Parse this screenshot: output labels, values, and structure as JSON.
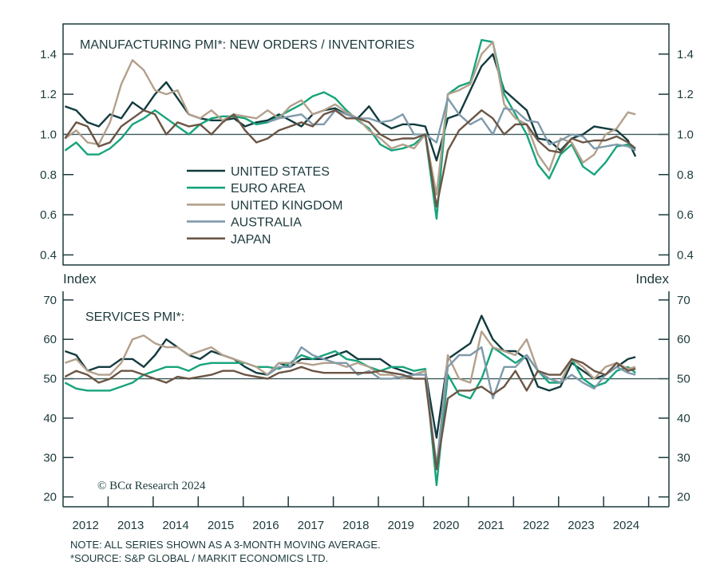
{
  "chart_data": [
    {
      "type": "line",
      "title": "MANUFACTURING PMI*: NEW ORDERS / INVENTORIES",
      "ylabel_left": "Index",
      "ylabel_right": "Index",
      "ylim": [
        0.35,
        1.55
      ],
      "yticks": [
        "0.4",
        "0.6",
        "0.8",
        "1.0",
        "1.2",
        "1.4"
      ],
      "reference_line": 1.0,
      "legend_placement": "center-left",
      "x": [
        "2012-01",
        "2012-04",
        "2012-07",
        "2012-10",
        "2013-01",
        "2013-04",
        "2013-07",
        "2013-10",
        "2014-01",
        "2014-04",
        "2014-07",
        "2014-10",
        "2015-01",
        "2015-04",
        "2015-07",
        "2015-10",
        "2016-01",
        "2016-04",
        "2016-07",
        "2016-10",
        "2017-01",
        "2017-04",
        "2017-07",
        "2017-10",
        "2018-01",
        "2018-04",
        "2018-07",
        "2018-10",
        "2019-01",
        "2019-04",
        "2019-07",
        "2019-10",
        "2020-01",
        "2020-04",
        "2020-07",
        "2020-10",
        "2021-01",
        "2021-04",
        "2021-07",
        "2021-10",
        "2022-01",
        "2022-04",
        "2022-07",
        "2022-10",
        "2023-01",
        "2023-04",
        "2023-07",
        "2023-10",
        "2024-01",
        "2024-04",
        "2024-07",
        "2024-09"
      ],
      "series": [
        {
          "name": "UNITED STATES",
          "color": "#123b3f",
          "values": [
            1.14,
            1.12,
            1.06,
            1.04,
            1.1,
            1.08,
            1.16,
            1.12,
            1.2,
            1.26,
            1.18,
            1.1,
            1.08,
            1.07,
            1.07,
            1.08,
            1.04,
            1.06,
            1.07,
            1.1,
            1.07,
            1.04,
            1.1,
            1.12,
            1.13,
            1.1,
            1.08,
            1.14,
            1.06,
            1.03,
            1.05,
            1.05,
            1.04,
            0.87,
            1.08,
            1.1,
            1.22,
            1.34,
            1.4,
            1.22,
            1.17,
            1.12,
            0.98,
            0.97,
            0.92,
            0.98,
            1.0,
            1.04,
            1.03,
            1.02,
            0.97,
            0.89
          ]
        },
        {
          "name": "EURO AREA",
          "color": "#17a37b",
          "values": [
            0.92,
            0.96,
            0.9,
            0.9,
            0.93,
            0.98,
            1.05,
            1.08,
            1.12,
            1.08,
            1.04,
            1.0,
            1.05,
            1.08,
            1.09,
            1.09,
            1.08,
            1.05,
            1.06,
            1.09,
            1.12,
            1.15,
            1.19,
            1.21,
            1.18,
            1.12,
            1.07,
            1.03,
            0.95,
            0.92,
            0.93,
            0.95,
            1.0,
            0.58,
            1.2,
            1.24,
            1.26,
            1.47,
            1.46,
            1.2,
            1.1,
            1.0,
            0.85,
            0.78,
            0.9,
            0.95,
            0.84,
            0.8,
            0.86,
            0.94,
            0.95,
            0.92
          ]
        },
        {
          "name": "UNITED KINGDOM",
          "color": "#b3a08c",
          "values": [
            0.98,
            1.02,
            0.96,
            0.95,
            1.06,
            1.25,
            1.37,
            1.32,
            1.22,
            1.2,
            1.22,
            1.1,
            1.08,
            1.12,
            1.07,
            1.1,
            1.09,
            1.08,
            1.12,
            1.08,
            1.14,
            1.17,
            1.1,
            1.12,
            1.15,
            1.11,
            1.08,
            1.02,
            0.98,
            0.93,
            0.95,
            0.93,
            1.0,
            0.7,
            1.2,
            1.22,
            1.25,
            1.4,
            1.46,
            1.15,
            1.08,
            1.05,
            0.9,
            0.82,
            0.98,
            0.96,
            0.86,
            0.9,
            1.0,
            1.03,
            1.11,
            1.1
          ]
        },
        {
          "name": "AUSTRALIA",
          "color": "#7f9aab",
          "values": [
            null,
            null,
            null,
            null,
            null,
            null,
            null,
            null,
            null,
            null,
            null,
            null,
            null,
            null,
            null,
            null,
            null,
            null,
            1.06,
            1.08,
            1.09,
            1.1,
            1.05,
            1.05,
            1.12,
            1.1,
            1.08,
            1.08,
            1.06,
            1.07,
            1.1,
            1.0,
            1.0,
            0.96,
            1.18,
            1.1,
            1.05,
            1.08,
            1.0,
            1.13,
            1.12,
            1.07,
            1.06,
            0.95,
            0.97,
            1.0,
            0.99,
            0.93,
            0.94,
            0.95,
            0.94,
            0.92
          ]
        },
        {
          "name": "JAPAN",
          "color": "#6b5545",
          "values": [
            0.98,
            1.06,
            1.04,
            0.94,
            0.96,
            1.04,
            1.08,
            1.12,
            1.1,
            1.0,
            1.06,
            1.04,
            1.05,
            1.0,
            1.06,
            1.1,
            1.02,
            0.96,
            0.98,
            1.02,
            1.04,
            1.06,
            1.04,
            1.1,
            1.12,
            1.08,
            1.08,
            1.06,
            1.0,
            0.97,
            0.98,
            0.98,
            1.0,
            0.64,
            0.92,
            1.02,
            1.07,
            1.12,
            1.08,
            1.0,
            1.05,
            1.05,
            0.97,
            0.92,
            0.91,
            0.98,
            0.96,
            0.97,
            0.97,
            0.99,
            0.96,
            0.93
          ]
        }
      ]
    },
    {
      "type": "line",
      "title": "SERVICES PMI*:",
      "ylim": [
        17.5,
        72.2
      ],
      "yticks": [
        "20",
        "30",
        "40",
        "50",
        "60",
        "70"
      ],
      "reference_line": 50,
      "xticks": [
        "2012",
        "2013",
        "2014",
        "2015",
        "2016",
        "2017",
        "2018",
        "2019",
        "2020",
        "2021",
        "2022",
        "2023",
        "2024"
      ],
      "x": [
        "2012-01",
        "2012-04",
        "2012-07",
        "2012-10",
        "2013-01",
        "2013-04",
        "2013-07",
        "2013-10",
        "2014-01",
        "2014-04",
        "2014-07",
        "2014-10",
        "2015-01",
        "2015-04",
        "2015-07",
        "2015-10",
        "2016-01",
        "2016-04",
        "2016-07",
        "2016-10",
        "2017-01",
        "2017-04",
        "2017-07",
        "2017-10",
        "2018-01",
        "2018-04",
        "2018-07",
        "2018-10",
        "2019-01",
        "2019-04",
        "2019-07",
        "2019-10",
        "2020-01",
        "2020-04",
        "2020-07",
        "2020-10",
        "2021-01",
        "2021-04",
        "2021-07",
        "2021-10",
        "2022-01",
        "2022-04",
        "2022-07",
        "2022-10",
        "2023-01",
        "2023-04",
        "2023-07",
        "2023-10",
        "2024-01",
        "2024-04",
        "2024-07",
        "2024-09"
      ],
      "series": [
        {
          "name": "UNITED STATES",
          "color": "#123b3f",
          "values": [
            57,
            56,
            52,
            53,
            53,
            55,
            55,
            53,
            56,
            60,
            58,
            56,
            55,
            57,
            56,
            55,
            53,
            51.5,
            51,
            54,
            53,
            55,
            55,
            55,
            56,
            57,
            55,
            55,
            55,
            53,
            52,
            51,
            52,
            35,
            55,
            57,
            59,
            66,
            60,
            57,
            57,
            55,
            48,
            47,
            48,
            54,
            52,
            50,
            51,
            53,
            55,
            55.5
          ]
        },
        {
          "name": "EURO AREA",
          "color": "#17a37b",
          "values": [
            49,
            47.5,
            47,
            47,
            47,
            48,
            49,
            51,
            52,
            53,
            53,
            52,
            53.5,
            54,
            54,
            54,
            54,
            53,
            53,
            52.5,
            54,
            56,
            55,
            56,
            57,
            55,
            54.5,
            53,
            52,
            53,
            53,
            52,
            52.5,
            23,
            51,
            46,
            45,
            50,
            58,
            56,
            54,
            56,
            52,
            49,
            49,
            55,
            50,
            48,
            49,
            52,
            53,
            51.5
          ]
        },
        {
          "name": "UNITED KINGDOM",
          "color": "#b3a08c",
          "values": [
            54,
            55,
            52,
            51,
            51,
            54,
            60,
            61,
            59,
            58,
            58,
            56,
            57,
            58,
            56,
            55,
            54,
            53,
            51,
            54,
            54,
            54,
            53.5,
            54,
            54,
            53,
            54,
            53,
            51,
            51,
            50,
            51,
            52,
            27,
            56,
            50,
            49,
            62,
            58,
            57,
            56,
            60,
            52,
            50,
            49,
            55,
            53,
            50,
            53,
            54,
            52.5,
            53
          ]
        },
        {
          "name": "AUSTRALIA",
          "color": "#7f9aab",
          "values": [
            null,
            null,
            null,
            null,
            null,
            null,
            null,
            null,
            null,
            null,
            null,
            null,
            null,
            null,
            null,
            null,
            null,
            null,
            51,
            53,
            53,
            58,
            56,
            55,
            54,
            54,
            51,
            52,
            50,
            50,
            50.5,
            51,
            51,
            28,
            53,
            56,
            56,
            58,
            45,
            53,
            53,
            56,
            52,
            50,
            49,
            51,
            49,
            47.5,
            51,
            53,
            51.5,
            51
          ]
        },
        {
          "name": "JAPAN",
          "color": "#6b5545",
          "values": [
            50.5,
            52,
            51,
            49,
            50,
            52,
            52,
            51,
            50,
            49,
            50.5,
            50,
            50.5,
            51,
            52,
            52,
            51,
            50.5,
            50,
            51.5,
            52,
            53,
            52,
            51.5,
            51.5,
            51.5,
            51.5,
            51.5,
            52,
            51.5,
            51,
            50,
            50,
            27,
            45,
            47,
            47,
            48,
            46,
            48,
            52,
            47,
            52,
            51,
            51,
            55,
            54,
            52,
            51,
            54,
            52,
            52.5
          ]
        }
      ]
    }
  ],
  "labels": {
    "index_left": "Index",
    "index_right": "Index",
    "copyright": "© BCα Research 2024",
    "note1": "NOTE: ALL SERIES SHOWN AS A 3-MONTH MOVING AVERAGE.",
    "note2": "*SOURCE: S&P GLOBAL / MARKIT ECONOMICS LTD."
  },
  "colors": {
    "axis": "#1d3a3d",
    "text": "#1d3a3d"
  }
}
